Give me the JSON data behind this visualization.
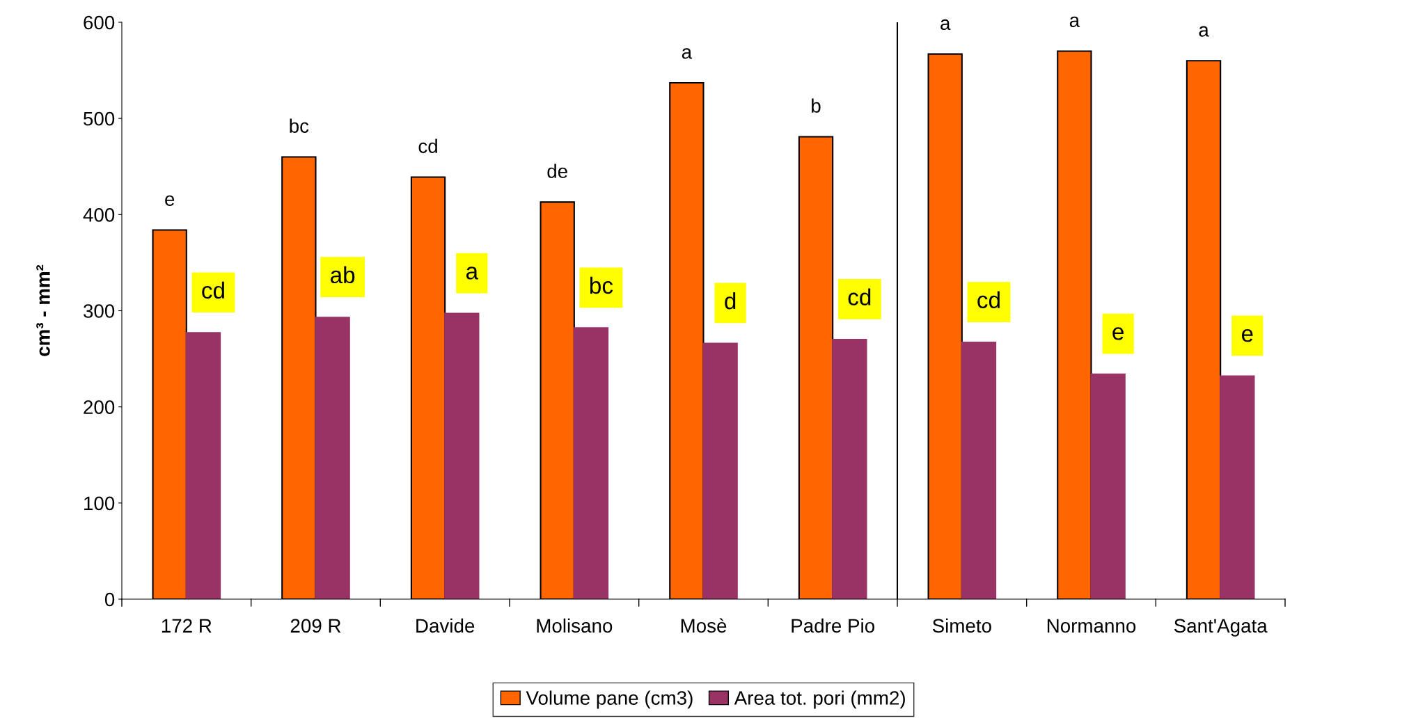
{
  "chart_data": {
    "type": "bar",
    "ylabel": "cm³ - mm²",
    "categories": [
      "172 R",
      "209 R",
      "Davide",
      "Molisano",
      "Mosè",
      "Padre Pio",
      "Simeto",
      "Normanno",
      "Sant'Agata"
    ],
    "series": [
      {
        "name": "Volume pane (cm3)",
        "color": "#ff6600",
        "values": [
          384,
          460,
          439,
          413,
          537,
          481,
          567,
          570,
          560
        ],
        "value_labels": [
          "e",
          "bc",
          "cd",
          "de",
          "a",
          "b",
          "a",
          "a",
          "a"
        ]
      },
      {
        "name": "Area tot. pori (mm2)",
        "color": "#993366",
        "values": [
          277,
          293,
          297,
          282,
          266,
          270,
          267,
          234,
          232
        ],
        "value_labels": [
          "cd",
          "ab",
          "a",
          "bc",
          "d",
          "cd",
          "cd",
          "e",
          "e"
        ]
      }
    ],
    "ylim": [
      0,
      600
    ],
    "yticks": [
      0,
      100,
      200,
      300,
      400,
      500,
      600
    ],
    "grid": false,
    "legend": "bottom"
  }
}
